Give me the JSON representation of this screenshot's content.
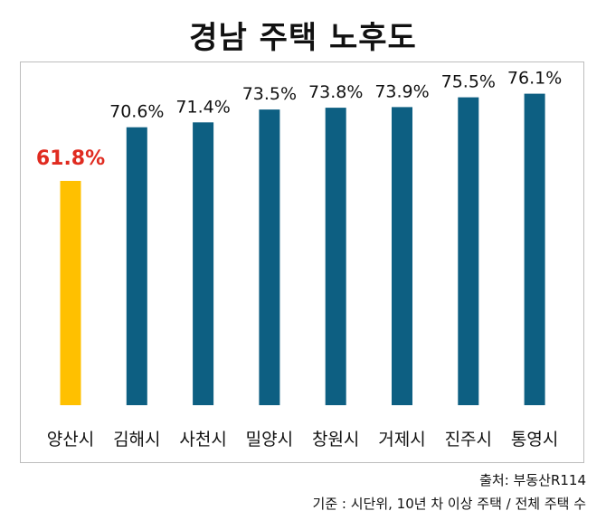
{
  "chart_data": {
    "type": "bar",
    "title": "경남 주택 노후도",
    "categories": [
      "양산시",
      "김해시",
      "사천시",
      "밀양시",
      "창원시",
      "거제시",
      "진주시",
      "통영시"
    ],
    "values": [
      61.8,
      70.6,
      71.4,
      73.5,
      73.8,
      73.9,
      75.5,
      76.1
    ],
    "value_labels": [
      "61.8%",
      "70.6%",
      "71.4%",
      "73.5%",
      "73.8%",
      "73.9%",
      "75.5%",
      "76.1%"
    ],
    "highlight_index": 0,
    "ylim": [
      25,
      78
    ],
    "xlabel": "",
    "ylabel": "",
    "grid": false,
    "legend": "none"
  },
  "colors": {
    "bar": "#0d5f82",
    "highlight_bar": "#ffc000",
    "highlight_label": "#e02b20",
    "text": "#111111"
  },
  "footer": {
    "source": "출처: 부동산R114",
    "criteria": "기준 : 시단위, 10년 차 이상 주택 / 전체 주택 수"
  }
}
